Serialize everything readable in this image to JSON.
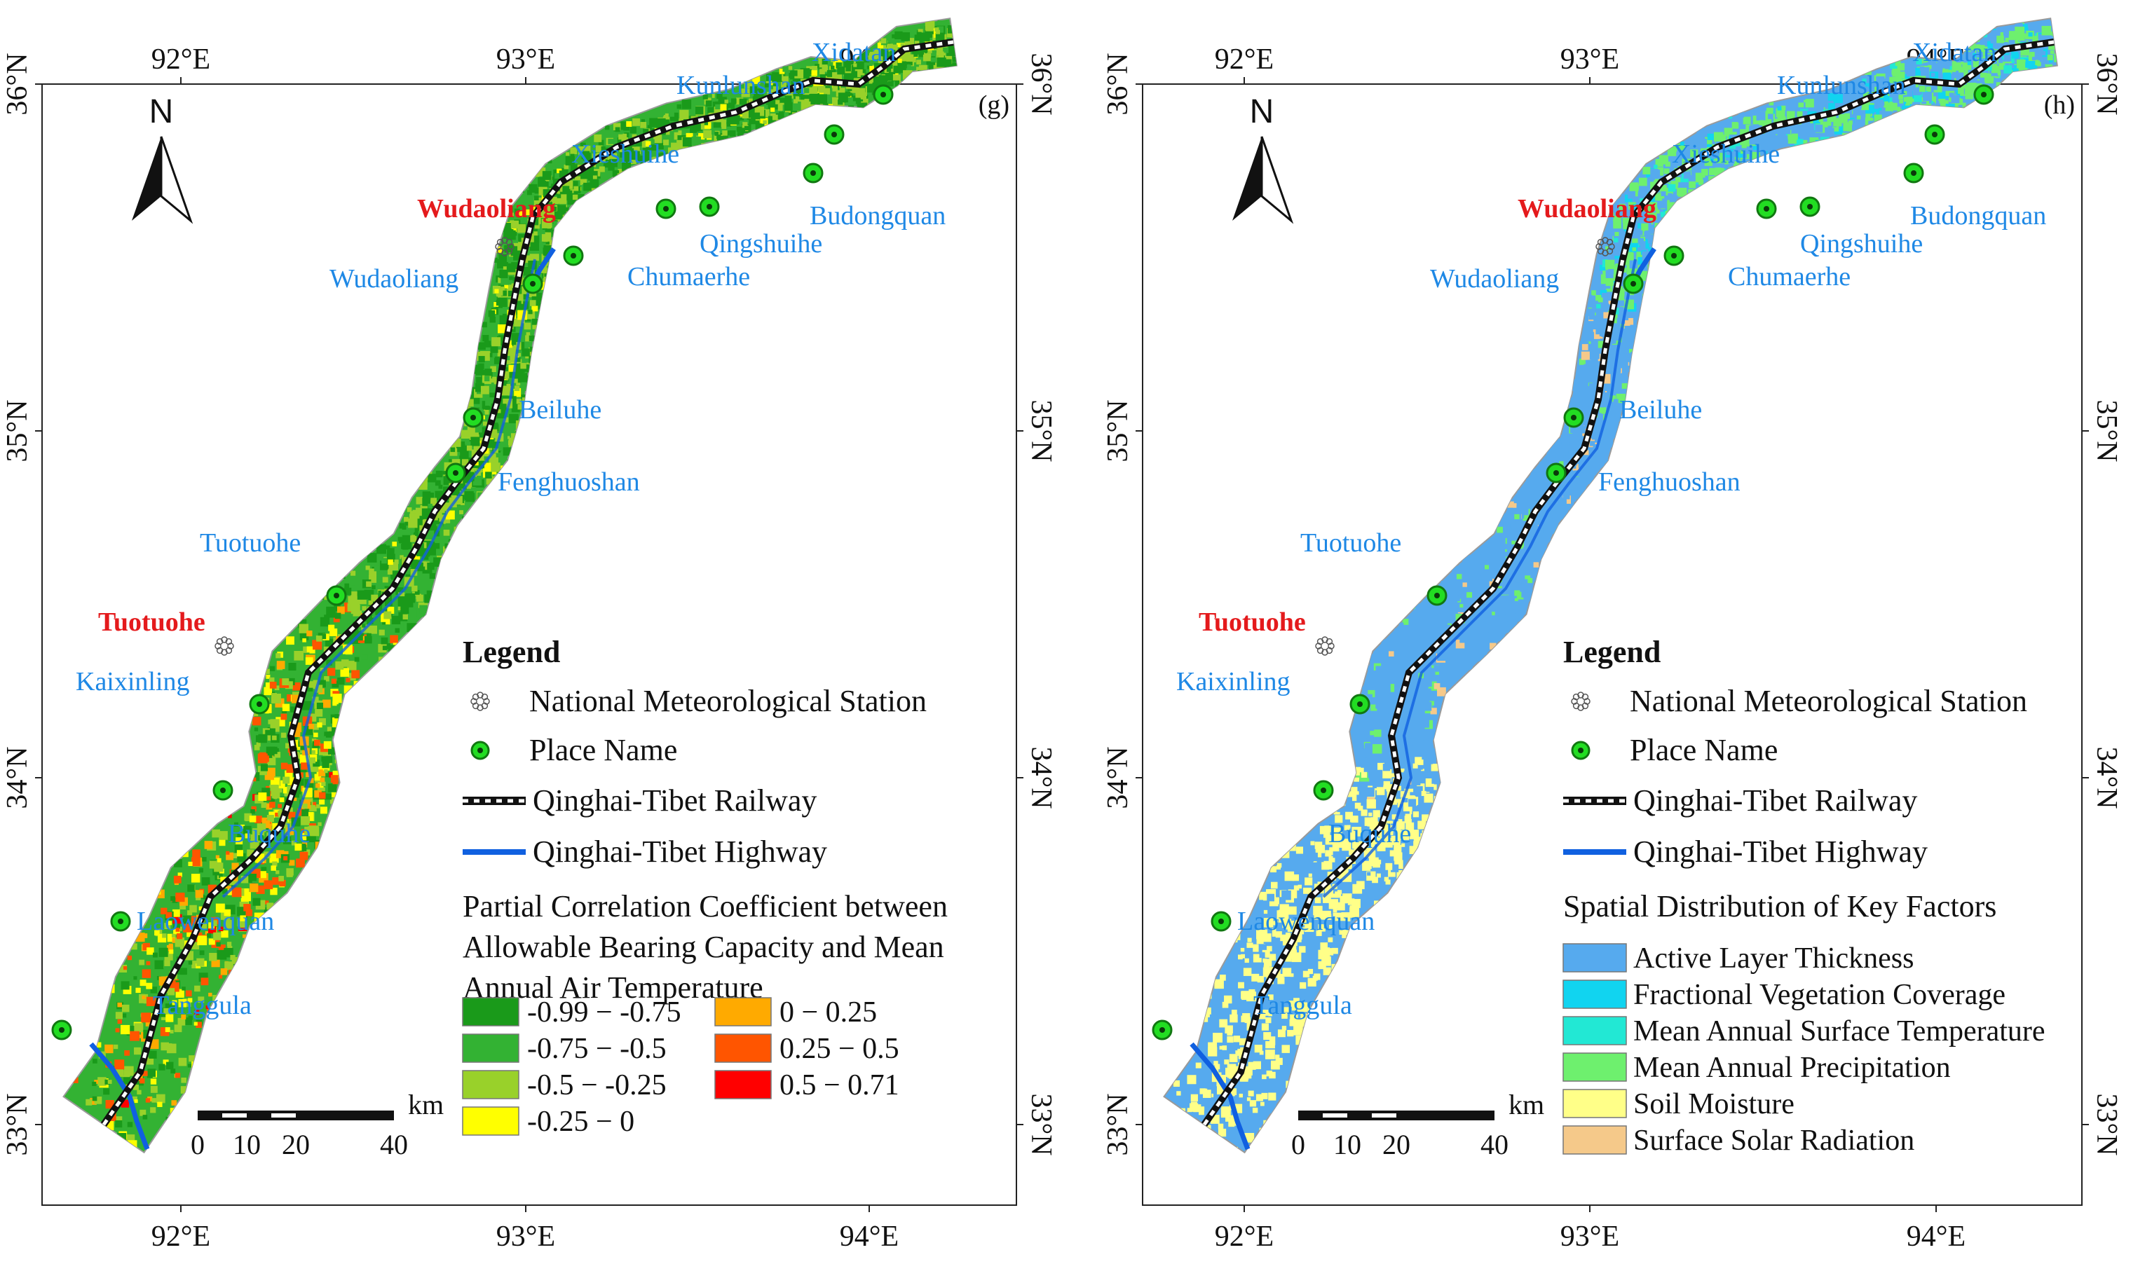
{
  "panels": [
    {
      "tag": "(g)",
      "axis": {
        "lon_labels": [
          "92°E",
          "93°E",
          "94°E"
        ],
        "lat_labels": [
          "36°N",
          "35°N",
          "34°N",
          "33°N"
        ]
      },
      "north": "N",
      "stations": [
        "Wudaoliang",
        "Tuotuohe"
      ],
      "places": [
        "Xidatan",
        "Kunlunshan",
        "Xieshuihe",
        "Budongquan",
        "Qingshuihe",
        "Chumaerhe",
        "Wudaoliang",
        "Beiluhe",
        "Fenghuoshan",
        "Tuotuohe",
        "Kaixinling",
        "Buquhe",
        "Laowenquan",
        "Tanggula"
      ],
      "scale": {
        "unit": "km",
        "ticks": [
          "0",
          "10",
          "20",
          "40"
        ]
      },
      "legend": {
        "title": "Legend",
        "items": [
          "National Meteorological Station",
          "Place Name",
          "Qinghai-Tibet Railway",
          "Qinghai-Tibet Highway"
        ],
        "subtitle_lines": [
          "Partial Correlation Coefficient between",
          "Allowable Bearing Capacity and Mean",
          "Annual Air Temperature"
        ],
        "classes": [
          {
            "label": "-0.99 − -0.75",
            "color": "#1a9a1a"
          },
          {
            "label": "-0.75 − -0.5",
            "color": "#33b233"
          },
          {
            "label": "-0.5 − -0.25",
            "color": "#99d12a"
          },
          {
            "label": "-0.25 − 0",
            "color": "#ffff00"
          },
          {
            "label": "0 − 0.25",
            "color": "#ffaa00"
          },
          {
            "label": "0.25 − 0.5",
            "color": "#ff5500"
          },
          {
            "label": "0.5 − 0.71",
            "color": "#ff0000"
          }
        ]
      }
    },
    {
      "tag": "(h)",
      "axis": {
        "lon_labels": [
          "92°E",
          "93°E",
          "94°E"
        ],
        "lat_labels": [
          "36°N",
          "35°N",
          "34°N",
          "33°N"
        ]
      },
      "north": "N",
      "stations": [
        "Wudaoliang",
        "Tuotuohe"
      ],
      "places": [
        "Xidatan",
        "Kunlunshan",
        "Xieshuihe",
        "Budongquan",
        "Qingshuihe",
        "Chumaerhe",
        "Wudaoliang",
        "Beiluhe",
        "Fenghuoshan",
        "Tuotuohe",
        "Kaixinling",
        "Buquhe",
        "Laowenquan",
        "Tanggula"
      ],
      "scale": {
        "unit": "km",
        "ticks": [
          "0",
          "10",
          "20",
          "40"
        ]
      },
      "legend": {
        "title": "Legend",
        "items": [
          "National Meteorological Station",
          "Place Name",
          "Qinghai-Tibet Railway",
          "Qinghai-Tibet Highway"
        ],
        "subtitle_lines": [
          "Spatial Distribution of Key Factors"
        ],
        "classes": [
          {
            "label": "Active Layer Thickness",
            "color": "#56aaee"
          },
          {
            "label": "Fractional Vegetation Coverage",
            "color": "#11d4f0"
          },
          {
            "label": "Mean Annual Surface Temperature",
            "color": "#22e8d4"
          },
          {
            "label": "Mean Annual Precipitation",
            "color": "#6ef06e"
          },
          {
            "label": "Soil Moisture",
            "color": "#ffff88"
          },
          {
            "label": "Surface Solar Radiation",
            "color": "#f5c98a"
          }
        ]
      }
    }
  ]
}
